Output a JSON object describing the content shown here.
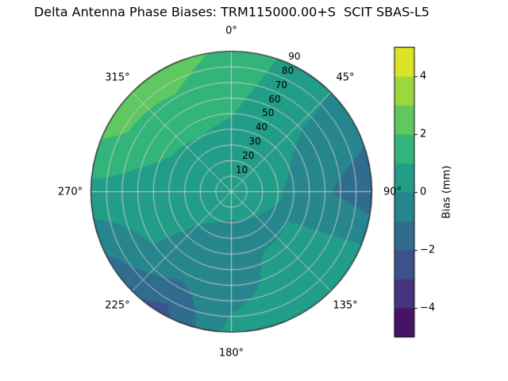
{
  "chart_data": {
    "type": "heatmap",
    "projection": "polar",
    "title": "Delta Antenna Phase Biases: TRM115000.00+S  SCIT SBAS-L5",
    "grid_on": true,
    "angular_ticks": [
      {
        "deg": 0,
        "label": "0°"
      },
      {
        "deg": 45,
        "label": "45°"
      },
      {
        "deg": 90,
        "label": "90°"
      },
      {
        "deg": 135,
        "label": "135°"
      },
      {
        "deg": 180,
        "label": "180°"
      },
      {
        "deg": 225,
        "label": "225°"
      },
      {
        "deg": 270,
        "label": "270°"
      },
      {
        "deg": 315,
        "label": "315°"
      }
    ],
    "radial_ticks": [
      10,
      20,
      30,
      40,
      50,
      60,
      70,
      80,
      90
    ],
    "radial_axis_max": 90,
    "radial_label_angle_deg": 25,
    "contour_level_step_mm": 1,
    "colorbar": {
      "label": "Bias (mm)",
      "min": -5,
      "max": 5,
      "tick_values": [
        4,
        2,
        0,
        -2,
        -4
      ],
      "tick_labels": [
        "4",
        "2",
        "0",
        "−2",
        "−4"
      ],
      "colormap": "viridis",
      "colormap_stops": [
        "#440154",
        "#482475",
        "#414487",
        "#355f8d",
        "#2a788e",
        "#21918c",
        "#22a884",
        "#44bf70",
        "#7ad151",
        "#bddf26",
        "#fde725"
      ]
    },
    "bias_grid": {
      "azimuth_deg": [
        0,
        30,
        60,
        90,
        120,
        150,
        180,
        210,
        240,
        270,
        300,
        330
      ],
      "zenith_deg": [
        0,
        30,
        60,
        90
      ],
      "values_mm": [
        [
          0.6,
          0.6,
          0.6,
          0.6,
          0.6,
          0.6,
          0.6,
          0.6,
          0.6,
          0.6,
          0.6,
          0.6
        ],
        [
          0.7,
          0.6,
          0.3,
          0.1,
          -0.1,
          -0.3,
          -0.4,
          -0.2,
          0.2,
          0.5,
          0.6,
          0.7
        ],
        [
          1.2,
          0.5,
          -0.3,
          -0.9,
          0.2,
          0.4,
          -0.6,
          -0.7,
          0.1,
          0.6,
          1.4,
          1.6
        ],
        [
          1.7,
          0.6,
          -0.6,
          -1.7,
          0.6,
          0.9,
          0.4,
          -2.4,
          -1.2,
          0.7,
          2.5,
          2.6
        ]
      ]
    },
    "layout": {
      "background": "#ffffff",
      "grid_color": "#d2d2d2",
      "legend": "none"
    }
  }
}
